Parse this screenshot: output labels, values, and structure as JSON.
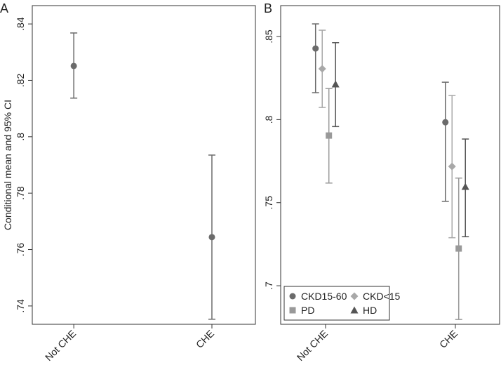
{
  "chart_data": [
    {
      "type": "errorbar",
      "title": "A",
      "y_label": "Conditional mean and 95% CI",
      "categories": [
        "Not CHE",
        "CHE"
      ],
      "series": [
        {
          "color": "#6b6b6b",
          "marker": "circle",
          "values": [
            0.8251,
            0.7644
          ],
          "lower": [
            0.8137,
            0.7353
          ],
          "upper": [
            0.8368,
            0.7935
          ]
        }
      ],
      "ylim": [
        0.7335,
        0.8465
      ],
      "yticks": [
        {
          "value": 0.74,
          "label": ".74"
        },
        {
          "value": 0.76,
          "label": ".76"
        },
        {
          "value": 0.78,
          "label": ".78"
        },
        {
          "value": 0.8,
          "label": ".8"
        },
        {
          "value": 0.82,
          "label": ".82"
        },
        {
          "value": 0.84,
          "label": ".84"
        }
      ]
    },
    {
      "type": "errorbar",
      "title": "B",
      "categories": [
        "Not CHE",
        "CHE"
      ],
      "series": [
        {
          "name": "CKD15-60",
          "color": "#6b6b6b",
          "marker": "circle",
          "values": [
            0.8428,
            0.7984
          ],
          "lower": [
            0.8162,
            0.7508
          ],
          "upper": [
            0.8576,
            0.8225
          ]
        },
        {
          "name": "CKD<15",
          "color": "#a8a8a8",
          "marker": "diamond",
          "values": [
            0.8306,
            0.7718
          ],
          "lower": [
            0.8073,
            0.7289
          ],
          "upper": [
            0.8538,
            0.8145
          ]
        },
        {
          "name": "PD",
          "color": "#999999",
          "marker": "square",
          "values": [
            0.7904,
            0.7224
          ],
          "lower": [
            0.7618,
            0.6797
          ],
          "upper": [
            0.8187,
            0.7648
          ]
        },
        {
          "name": "HD",
          "color": "#555555",
          "marker": "triangle",
          "values": [
            0.8213,
            0.7596
          ],
          "lower": [
            0.7958,
            0.7295
          ],
          "upper": [
            0.8463,
            0.7883
          ]
        }
      ],
      "ylim": [
        0.6768,
        0.8686
      ],
      "yticks": [
        {
          "value": 0.7,
          "label": ".7"
        },
        {
          "value": 0.75,
          "label": ".75"
        },
        {
          "value": 0.8,
          "label": ".8"
        },
        {
          "value": 0.85,
          "label": ".85"
        }
      ],
      "legend": "lower left"
    }
  ]
}
